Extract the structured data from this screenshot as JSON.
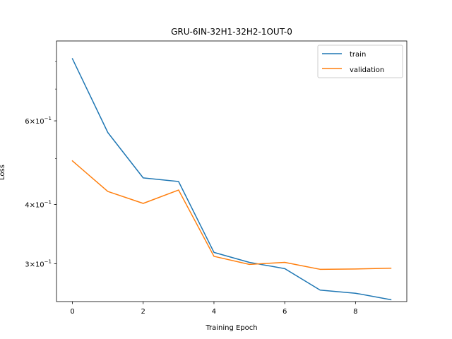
{
  "chart_data": {
    "type": "line",
    "title": "GRU-6IN-32H1-32H2-1OUT-0",
    "xlabel": "Training Epoch",
    "ylabel": "Loss",
    "yscale": "log",
    "xlim": [
      -0.45,
      9.45
    ],
    "ylim": [
      0.2497,
      0.884
    ],
    "grid": false,
    "legend_position": "top-right",
    "x_ticks": [
      0,
      2,
      4,
      6,
      8
    ],
    "y_ticks": [
      {
        "value": 0.3,
        "base": "3",
        "exp": "-1"
      },
      {
        "value": 0.4,
        "base": "4",
        "exp": "-1"
      },
      {
        "value": 0.6,
        "base": "6",
        "exp": "-1"
      }
    ],
    "x": [
      0,
      1,
      2,
      3,
      4,
      5,
      6,
      7,
      8,
      9
    ],
    "series": [
      {
        "name": "train",
        "color": "#1f77b4",
        "values": [
          0.811,
          0.567,
          0.455,
          0.447,
          0.317,
          0.302,
          0.293,
          0.264,
          0.26,
          0.252
        ]
      },
      {
        "name": "validation",
        "color": "#ff7f0e",
        "values": [
          0.494,
          0.426,
          0.402,
          0.429,
          0.311,
          0.299,
          0.302,
          0.292,
          0.2925,
          0.2935
        ]
      }
    ]
  }
}
